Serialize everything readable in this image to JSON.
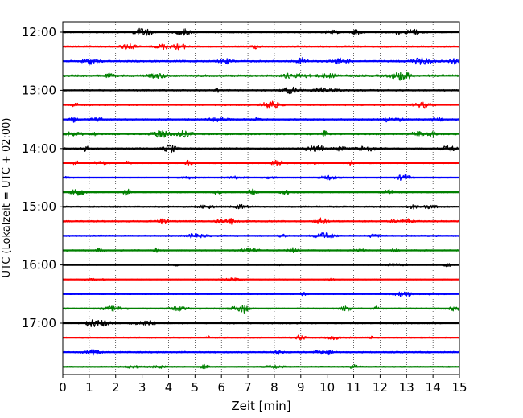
{
  "chart_data": {
    "type": "line",
    "title": "",
    "xlabel": "Zeit  [min]",
    "ylabel": "UTC (Lokalzeit = UTC + 02:00)",
    "xlim": [
      0,
      15
    ],
    "x_ticks": [
      "0",
      "1",
      "2",
      "3",
      "4",
      "5",
      "6",
      "7",
      "8",
      "9",
      "10",
      "11",
      "12",
      "13",
      "14",
      "15"
    ],
    "y_ticks": [
      "12:00",
      "13:00",
      "14:00",
      "15:00",
      "16:00",
      "17:00"
    ],
    "grid": "vertical dotted",
    "row_minutes": 15,
    "traces": [
      {
        "start": "12:00",
        "color": "#000000",
        "amplitude": 0.35
      },
      {
        "start": "12:15",
        "color": "#ff0000",
        "amplitude": 0.35
      },
      {
        "start": "12:30",
        "color": "#0000ff",
        "amplitude": 0.4
      },
      {
        "start": "12:45",
        "color": "#008000",
        "amplitude": 0.45
      },
      {
        "start": "13:00",
        "color": "#000000",
        "amplitude": 0.35
      },
      {
        "start": "13:15",
        "color": "#ff0000",
        "amplitude": 0.35
      },
      {
        "start": "13:30",
        "color": "#0000ff",
        "amplitude": 0.35
      },
      {
        "start": "13:45",
        "color": "#008000",
        "amplitude": 0.4
      },
      {
        "start": "14:00",
        "color": "#000000",
        "amplitude": 0.35
      },
      {
        "start": "14:15",
        "color": "#ff0000",
        "amplitude": 0.3
      },
      {
        "start": "14:30",
        "color": "#0000ff",
        "amplitude": 0.25
      },
      {
        "start": "14:45",
        "color": "#008000",
        "amplitude": 0.3
      },
      {
        "start": "15:00",
        "color": "#000000",
        "amplitude": 0.35
      },
      {
        "start": "15:15",
        "color": "#ff0000",
        "amplitude": 0.35
      },
      {
        "start": "15:30",
        "color": "#0000ff",
        "amplitude": 0.35
      },
      {
        "start": "15:45",
        "color": "#008000",
        "amplitude": 0.3
      },
      {
        "start": "16:00",
        "color": "#000000",
        "amplitude": 0.2
      },
      {
        "start": "16:15",
        "color": "#ff0000",
        "amplitude": 0.2
      },
      {
        "start": "16:30",
        "color": "#0000ff",
        "amplitude": 0.25
      },
      {
        "start": "16:45",
        "color": "#008000",
        "amplitude": 0.3
      },
      {
        "start": "17:00",
        "color": "#000000",
        "amplitude": 0.35
      },
      {
        "start": "17:15",
        "color": "#ff0000",
        "amplitude": 0.3
      },
      {
        "start": "17:30",
        "color": "#0000ff",
        "amplitude": 0.35
      },
      {
        "start": "17:45",
        "color": "#008000",
        "amplitude": 0.3
      }
    ]
  }
}
